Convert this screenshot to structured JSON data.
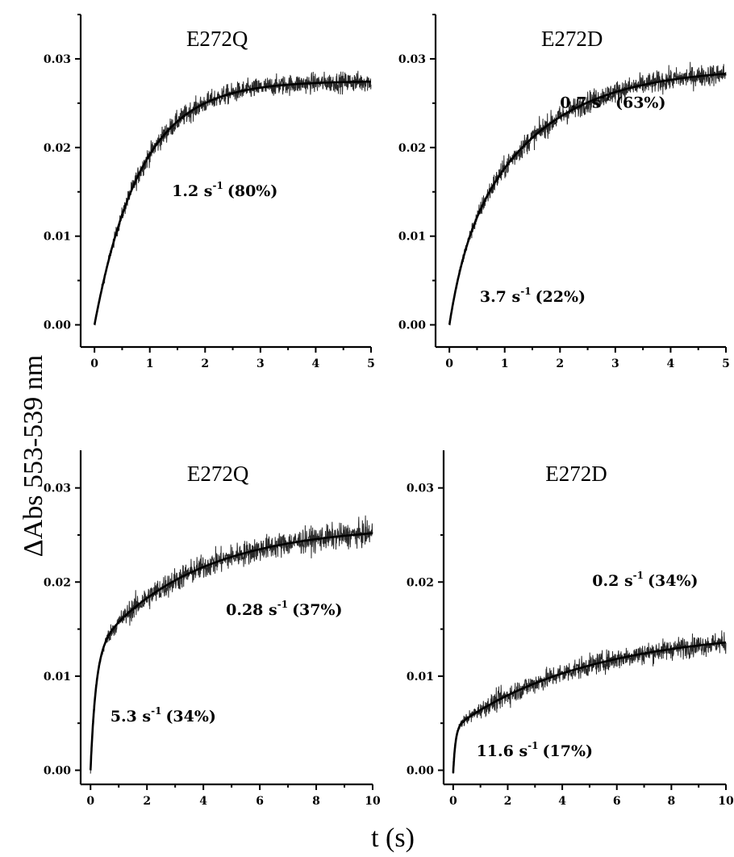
{
  "figure": {
    "ylabel": "ΔAbs 553-539 nm",
    "xlabel": "t (s)"
  },
  "chart_data": [
    {
      "type": "line",
      "title": "E272Q",
      "xlim": [
        -0.25,
        5
      ],
      "ylim": [
        -0.0025,
        0.035
      ],
      "xticks": [
        0,
        1,
        2,
        3,
        4,
        5
      ],
      "yticks": [
        0.0,
        0.01,
        0.02,
        0.03
      ],
      "ytick_labels": [
        "0.00",
        "0.01",
        "0.02",
        "0.03"
      ],
      "fit": {
        "y0": 0.0,
        "components": [
          {
            "rate": 1.2,
            "amplitude": 0.0275
          }
        ]
      },
      "noise": 0.0011,
      "annotations": [
        {
          "rate": "1.2",
          "percent": "(80%)",
          "x": 1.4,
          "y": 0.0145
        }
      ],
      "series": [
        {
          "values": []
        }
      ]
    },
    {
      "type": "line",
      "title": "E272D",
      "xlim": [
        -0.25,
        5
      ],
      "ylim": [
        -0.0025,
        0.035
      ],
      "xticks": [
        0,
        1,
        2,
        3,
        4,
        5
      ],
      "yticks": [
        0.0,
        0.01,
        0.02,
        0.03
      ],
      "ytick_labels": [
        "0.00",
        "0.01",
        "0.02",
        "0.03"
      ],
      "fit": {
        "y0": 0.0,
        "components": [
          {
            "rate": 3.7,
            "amplitude": 0.0065
          },
          {
            "rate": 0.7,
            "amplitude": 0.0225
          }
        ]
      },
      "noise": 0.0012,
      "annotations": [
        {
          "rate": "0.7",
          "percent": "(63%)",
          "x": 2.0,
          "y": 0.0245
        },
        {
          "rate": "3.7",
          "percent": "(22%)",
          "x": 0.55,
          "y": 0.0026
        }
      ],
      "series": [
        {
          "values": []
        }
      ]
    },
    {
      "type": "line",
      "title": "E272Q",
      "xlim": [
        -0.35,
        10
      ],
      "ylim": [
        -0.0015,
        0.034
      ],
      "xticks": [
        0,
        2,
        4,
        6,
        8,
        10
      ],
      "yticks": [
        0.0,
        0.01,
        0.02,
        0.03
      ],
      "ytick_labels": [
        "0.00",
        "0.01",
        "0.02",
        "0.03"
      ],
      "fit": {
        "y0": 0.0,
        "components": [
          {
            "rate": 5.3,
            "amplitude": 0.0125
          },
          {
            "rate": 0.28,
            "amplitude": 0.0135
          }
        ]
      },
      "noise": 0.0013,
      "annotations": [
        {
          "rate": "0.28",
          "percent": "(37%)",
          "x": 4.8,
          "y": 0.0165
        },
        {
          "rate": "5.3",
          "percent": "(34%)",
          "x": 0.7,
          "y": 0.0052
        }
      ],
      "series": [
        {
          "values": []
        }
      ]
    },
    {
      "type": "line",
      "title": "E272D",
      "xlim": [
        -0.35,
        10
      ],
      "ylim": [
        -0.0015,
        0.034
      ],
      "xticks": [
        0,
        2,
        4,
        6,
        8,
        10
      ],
      "yticks": [
        0.0,
        0.01,
        0.02,
        0.03
      ],
      "ytick_labels": [
        "0.00",
        "0.01",
        "0.02",
        "0.03"
      ],
      "fit": {
        "y0": -0.0003,
        "components": [
          {
            "rate": 11.6,
            "amplitude": 0.0048
          },
          {
            "rate": 0.2,
            "amplitude": 0.0105
          }
        ]
      },
      "noise": 0.0011,
      "annotations": [
        {
          "rate": "0.2",
          "percent": "(34%)",
          "x": 5.1,
          "y": 0.0196
        },
        {
          "rate": "11.6",
          "percent": "(17%)",
          "x": 0.85,
          "y": 0.0015
        }
      ],
      "series": [
        {
          "values": []
        }
      ]
    }
  ]
}
